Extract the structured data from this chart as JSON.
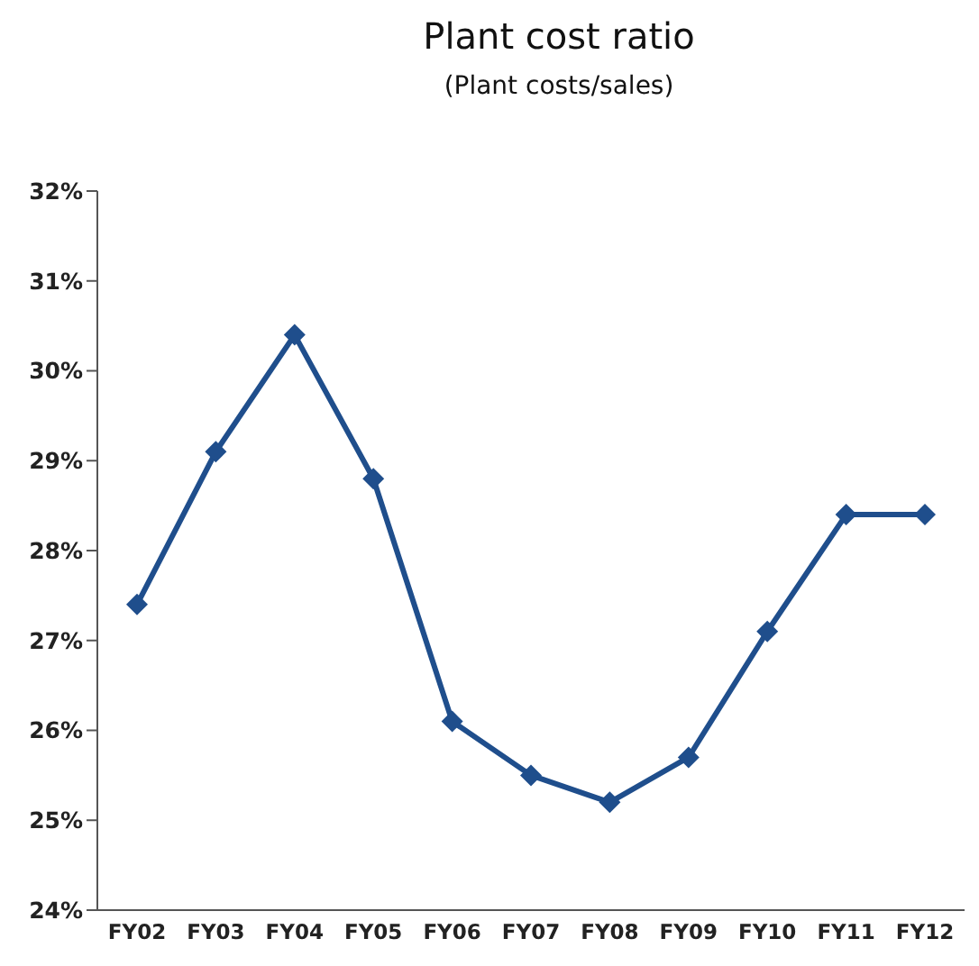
{
  "chart_data": {
    "type": "line",
    "title": "Plant cost ratio",
    "subtitle": "(Plant costs/sales)",
    "categories": [
      "FY02",
      "FY03",
      "FY04",
      "FY05",
      "FY06",
      "FY07",
      "FY08",
      "FY09",
      "FY10",
      "FY11",
      "FY12"
    ],
    "values": [
      27.4,
      29.1,
      30.4,
      28.8,
      26.1,
      25.5,
      25.2,
      25.7,
      27.1,
      28.4,
      28.4
    ],
    "color": "#1f4e8c",
    "marker": "diamond",
    "line_style": "solid",
    "grid": false,
    "ylim": [
      24,
      32
    ],
    "yticks": [
      {
        "value": 24,
        "label": "24%"
      },
      {
        "value": 25,
        "label": "25%"
      },
      {
        "value": 26,
        "label": "26%"
      },
      {
        "value": 27,
        "label": "27%"
      },
      {
        "value": 28,
        "label": "28%"
      },
      {
        "value": 29,
        "label": "29%"
      },
      {
        "value": 30,
        "label": "30%"
      },
      {
        "value": 31,
        "label": "31%"
      },
      {
        "value": 32,
        "label": "32%"
      }
    ]
  }
}
